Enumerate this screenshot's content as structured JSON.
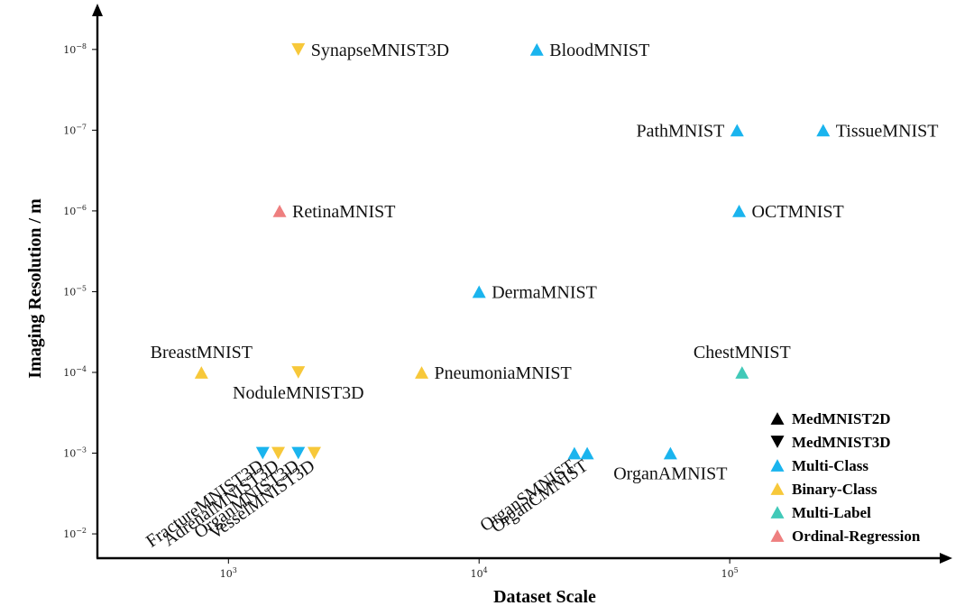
{
  "chart_data": {
    "type": "scatter",
    "xlabel": "Dataset Scale",
    "ylabel": "Imaging Resolution / m",
    "x_scale": "log",
    "y_scale": "log-inverted",
    "xlim": [
      300,
      700000
    ],
    "ylim": [
      0.02,
      3.5e-09
    ],
    "x_ticks": [
      {
        "base": "10",
        "exp": "3",
        "value": 1000
      },
      {
        "base": "10",
        "exp": "4",
        "value": 10000
      },
      {
        "base": "10",
        "exp": "5",
        "value": 100000
      }
    ],
    "y_ticks": [
      {
        "base": "10",
        "exp": "−8",
        "value": 1e-08
      },
      {
        "base": "10",
        "exp": "−7",
        "value": 1e-07
      },
      {
        "base": "10",
        "exp": "−6",
        "value": 1e-06
      },
      {
        "base": "10",
        "exp": "−5",
        "value": 1e-05
      },
      {
        "base": "10",
        "exp": "−4",
        "value": 0.0001
      },
      {
        "base": "10",
        "exp": "−3",
        "value": 0.001
      },
      {
        "base": "10",
        "exp": "−2",
        "value": 0.01
      }
    ],
    "categories": [
      {
        "key": "multi_class",
        "name": "Multi-Class",
        "color": "#1ab4ee"
      },
      {
        "key": "binary_class",
        "name": "Binary-Class",
        "color": "#f7c83a"
      },
      {
        "key": "multi_label",
        "name": "Multi-Label",
        "color": "#41c9b8"
      },
      {
        "key": "ordinal",
        "name": "Ordinal-Regression",
        "color": "#ee7f7f"
      }
    ],
    "points": [
      {
        "name": "SynapseMNIST3D",
        "x": 1900,
        "y": 1e-08,
        "dim": "3D",
        "category": "binary_class",
        "label_pos": "right",
        "label_rot": 0
      },
      {
        "name": "BloodMNIST",
        "x": 17000,
        "y": 1e-08,
        "dim": "2D",
        "category": "multi_class",
        "label_pos": "right",
        "label_rot": 0
      },
      {
        "name": "PathMNIST",
        "x": 107000,
        "y": 1e-07,
        "dim": "2D",
        "category": "multi_class",
        "label_pos": "left",
        "label_rot": 0
      },
      {
        "name": "TissueMNIST",
        "x": 236000,
        "y": 1e-07,
        "dim": "2D",
        "category": "multi_class",
        "label_pos": "right",
        "label_rot": 0
      },
      {
        "name": "RetinaMNIST",
        "x": 1600,
        "y": 1e-06,
        "dim": "2D",
        "category": "ordinal",
        "label_pos": "right",
        "label_rot": 0
      },
      {
        "name": "OCTMNIST",
        "x": 109000,
        "y": 1e-06,
        "dim": "2D",
        "category": "multi_class",
        "label_pos": "right",
        "label_rot": 0
      },
      {
        "name": "DermaMNIST",
        "x": 10000,
        "y": 1e-05,
        "dim": "2D",
        "category": "multi_class",
        "label_pos": "right",
        "label_rot": 0
      },
      {
        "name": "BreastMNIST",
        "x": 780,
        "y": 0.0001,
        "dim": "2D",
        "category": "binary_class",
        "label_pos": "above",
        "label_rot": 0
      },
      {
        "name": "NoduleMNIST3D",
        "x": 1900,
        "y": 0.0001,
        "dim": "3D",
        "category": "binary_class",
        "label_pos": "below",
        "label_rot": 0
      },
      {
        "name": "PneumoniaMNIST",
        "x": 5900,
        "y": 0.0001,
        "dim": "2D",
        "category": "binary_class",
        "label_pos": "right",
        "label_rot": 0
      },
      {
        "name": "ChestMNIST",
        "x": 112000,
        "y": 0.0001,
        "dim": "2D",
        "category": "multi_label",
        "label_pos": "above",
        "label_rot": 0
      },
      {
        "name": "FractureMNIST3D",
        "x": 1370,
        "y": 0.001,
        "dim": "3D",
        "category": "multi_class",
        "label_pos": "below-left",
        "label_rot": -35
      },
      {
        "name": "AdrenalMNIST3D",
        "x": 1580,
        "y": 0.001,
        "dim": "3D",
        "category": "binary_class",
        "label_pos": "below-left",
        "label_rot": -35
      },
      {
        "name": "OrganMNIST3D",
        "x": 1900,
        "y": 0.001,
        "dim": "3D",
        "category": "multi_class",
        "label_pos": "below-left",
        "label_rot": -35
      },
      {
        "name": "VesselMNIST3D",
        "x": 2200,
        "y": 0.001,
        "dim": "3D",
        "category": "binary_class",
        "label_pos": "below-left",
        "label_rot": -35
      },
      {
        "name": "OrganSMNIST",
        "x": 24000,
        "y": 0.001,
        "dim": "2D",
        "category": "multi_class",
        "label_pos": "below-left",
        "label_rot": -35
      },
      {
        "name": "OrganCMNIST",
        "x": 27000,
        "y": 0.001,
        "dim": "2D",
        "category": "multi_class",
        "label_pos": "below-left",
        "label_rot": -35
      },
      {
        "name": "OrganAMNIST",
        "x": 58000,
        "y": 0.001,
        "dim": "2D",
        "category": "multi_class",
        "label_pos": "below",
        "label_rot": 0
      }
    ],
    "legend": {
      "position": "bottom-right",
      "entries": [
        {
          "label": "MedMNIST2D",
          "marker": "triangle-up",
          "color": "#000000"
        },
        {
          "label": "MedMNIST3D",
          "marker": "triangle-down",
          "color": "#000000"
        },
        {
          "label": "Multi-Class",
          "marker": "triangle-up",
          "color": "#1ab4ee"
        },
        {
          "label": "Binary-Class",
          "marker": "triangle-up",
          "color": "#f7c83a"
        },
        {
          "label": "Multi-Label",
          "marker": "triangle-up",
          "color": "#41c9b8"
        },
        {
          "label": "Ordinal-Regression",
          "marker": "triangle-up",
          "color": "#ee7f7f"
        }
      ]
    }
  }
}
